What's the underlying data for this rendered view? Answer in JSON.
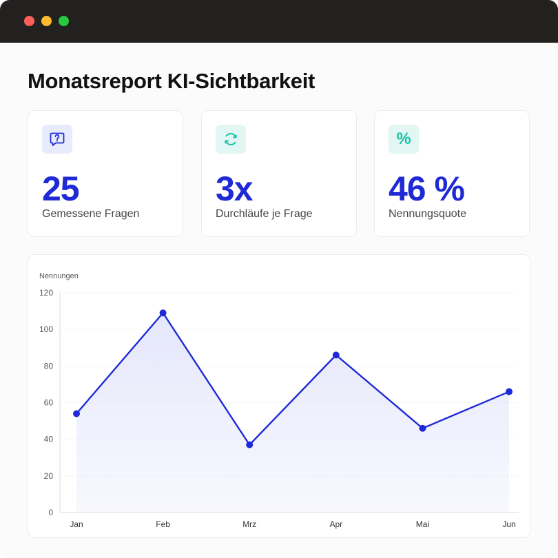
{
  "window": {
    "controls": [
      "close",
      "minimize",
      "maximize"
    ]
  },
  "page": {
    "title": "Monatsreport KI-Sichtbarkeit"
  },
  "stats": [
    {
      "icon": "question-bubble-icon",
      "value": "25",
      "label": "Gemessene Fragen"
    },
    {
      "icon": "refresh-cycle-icon",
      "value": "3x",
      "label": "Durchläufe je Frage"
    },
    {
      "icon": "percent-icon",
      "value": "46 %",
      "label": "Nennungsquote",
      "glyph": "%"
    }
  ],
  "colors": {
    "accent": "#1f2ad6",
    "teal": "#17c3a6",
    "area_fill": "#e3e6fb"
  },
  "chart_data": {
    "type": "area",
    "ylabel": "Nennungen",
    "categories": [
      "Jan",
      "Feb",
      "Mrz",
      "Apr",
      "Mai",
      "Jun"
    ],
    "values": [
      54,
      109,
      37,
      86,
      46,
      66
    ],
    "ylim": [
      0,
      120
    ],
    "yticks": [
      "0",
      "20",
      "40",
      "60",
      "80",
      "100",
      "120"
    ],
    "grid": true,
    "markers": true
  }
}
